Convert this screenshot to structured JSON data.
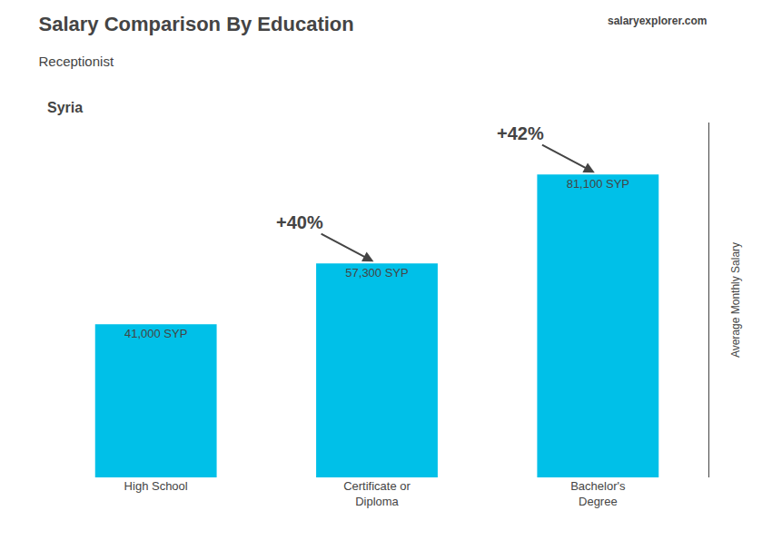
{
  "chart_data": {
    "type": "bar",
    "title": "Salary Comparison By Education",
    "subtitle": "Receptionist",
    "country": "Syria",
    "watermark": "salaryexplorer.com",
    "categories": [
      "High School",
      "Certificate or\nDiploma",
      "Bachelor's\nDegree"
    ],
    "values": [
      41000,
      57300,
      81100
    ],
    "value_labels": [
      "41,000 SYP",
      "57,300 SYP",
      "81,100 SYP"
    ],
    "data_labels": true,
    "color": "#00C0E8",
    "ylabel": "Average Monthly Salary",
    "ylim": [
      0,
      95000
    ],
    "tick_labels": "x",
    "grid": false,
    "annotations": [
      "+40%",
      "+42%"
    ]
  }
}
